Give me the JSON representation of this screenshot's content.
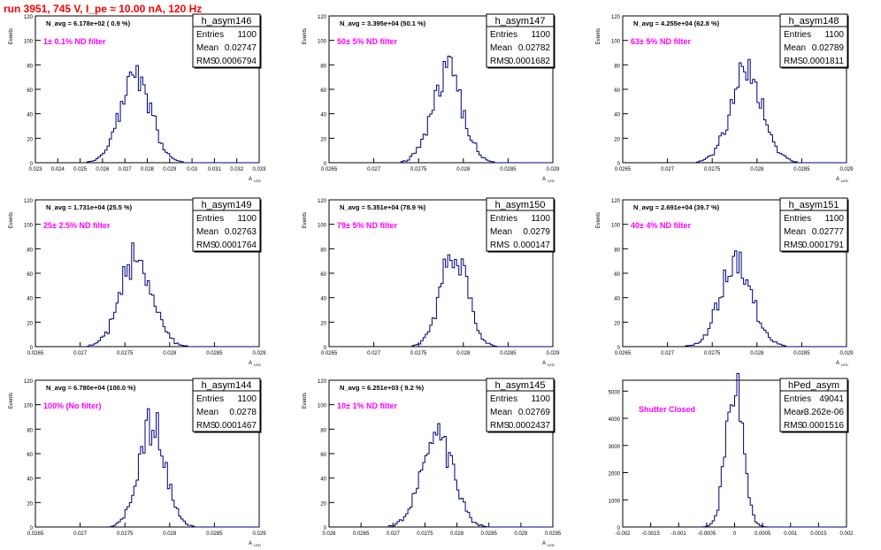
{
  "run_title": "run 3951,   745 V, I_pe ≈ 10.00 nA, 120 Hz",
  "colors": {
    "title": "#ff0000",
    "annotation": "#ff00ff",
    "histogram": "#000080",
    "axis": "#000000"
  },
  "chart_data": [
    {
      "type": "histogram",
      "name": "h_asym146",
      "navg": "N_avg = 6.178e+02 ( 0.9 %)",
      "filter": "1± 0.1% ND filter",
      "stats": {
        "entries": "1100",
        "mean": "0.02747",
        "rms": "0.0006794"
      },
      "xlabel": "A",
      "xlabel_sub": "LED",
      "ylabel": "Events",
      "xlim": [
        0.023,
        0.033
      ],
      "ylim": [
        0,
        120
      ],
      "xticks": [
        0.023,
        0.024,
        0.025,
        0.026,
        0.027,
        0.028,
        0.029,
        0.03,
        0.031,
        0.032,
        0.033
      ],
      "xtick_labels": [
        "0.023",
        "0.024",
        "0.025",
        "0.026",
        "0.027",
        "0.028",
        "0.029",
        "0.03",
        "0.031",
        "0.032",
        "0.033"
      ],
      "yticks": [
        0,
        20,
        40,
        60,
        80,
        100,
        120
      ],
      "ytick_labels": [
        "0",
        "20",
        "40",
        "60",
        "80",
        "100",
        "120"
      ],
      "hist": {
        "mean": 0.02747,
        "rms": 0.0006794,
        "peak": 72,
        "bin_width": 0.0001,
        "seed": 146
      }
    },
    {
      "type": "histogram",
      "name": "h_asym147",
      "navg": "N_avg = 3.395e+04 (50.1 %)",
      "filter": "50± 5% ND filter",
      "stats": {
        "entries": "1100",
        "mean": "0.02782",
        "rms": "0.0001682"
      },
      "xlabel": "A",
      "xlabel_sub": "LED",
      "ylabel": "Events",
      "xlim": [
        0.0265,
        0.029
      ],
      "ylim": [
        0,
        120
      ],
      "xticks": [
        0.0265,
        0.027,
        0.0275,
        0.028,
        0.0285,
        0.029
      ],
      "xtick_labels": [
        "0.0265",
        "0.027",
        "0.0275",
        "0.028",
        "0.0285",
        "0.029"
      ],
      "yticks": [
        0,
        20,
        40,
        60,
        80,
        100,
        120
      ],
      "ytick_labels": [
        "0",
        "20",
        "40",
        "60",
        "80",
        "100",
        "120"
      ],
      "hist": {
        "mean": 0.02782,
        "rms": 0.0001682,
        "peak": 73,
        "bin_width": 2.5e-05,
        "seed": 147
      }
    },
    {
      "type": "histogram",
      "name": "h_asym148",
      "navg": "N_avg = 4.255e+04 (62.8 %)",
      "filter": "63± 5% ND filter",
      "stats": {
        "entries": "1100",
        "mean": "0.02789",
        "rms": "0.0001811"
      },
      "xlabel": "A",
      "xlabel_sub": "LED",
      "ylabel": "Events",
      "xlim": [
        0.0265,
        0.029
      ],
      "ylim": [
        0,
        120
      ],
      "xticks": [
        0.0265,
        0.027,
        0.0275,
        0.028,
        0.0285,
        0.029
      ],
      "xtick_labels": [
        "0.0265",
        "0.027",
        "0.0275",
        "0.028",
        "0.0285",
        "0.029"
      ],
      "yticks": [
        0,
        20,
        40,
        60,
        80,
        100,
        120
      ],
      "ytick_labels": [
        "0",
        "20",
        "40",
        "60",
        "80",
        "100",
        "120"
      ],
      "hist": {
        "mean": 0.02789,
        "rms": 0.0001811,
        "peak": 73,
        "bin_width": 2.5e-05,
        "seed": 148
      }
    },
    {
      "type": "histogram",
      "name": "h_asym149",
      "navg": "N_avg = 1.731e+04 (25.5 %)",
      "filter": "25± 2.5% ND filter",
      "stats": {
        "entries": "1100",
        "mean": "0.02763",
        "rms": "0.0001764"
      },
      "xlabel": "A",
      "xlabel_sub": "LED",
      "ylabel": "Events",
      "xlim": [
        0.0265,
        0.029
      ],
      "ylim": [
        0,
        120
      ],
      "xticks": [
        0.0265,
        0.027,
        0.0275,
        0.028,
        0.0285,
        0.029
      ],
      "xtick_labels": [
        "0.0265",
        "0.027",
        "0.0275",
        "0.028",
        "0.0285",
        "0.029"
      ],
      "yticks": [
        0,
        20,
        40,
        60,
        80,
        100,
        120
      ],
      "ytick_labels": [
        "0",
        "20",
        "40",
        "60",
        "80",
        "100",
        "120"
      ],
      "hist": {
        "mean": 0.02763,
        "rms": 0.0001764,
        "peak": 74,
        "bin_width": 2.5e-05,
        "seed": 149
      }
    },
    {
      "type": "histogram",
      "name": "h_asym150",
      "navg": "N_avg = 5.351e+04 (78.9 %)",
      "filter": "79± 5% ND filter",
      "stats": {
        "entries": "1100",
        "mean": "0.0279",
        "rms": "0.000147"
      },
      "xlabel": "A",
      "xlabel_sub": "LED",
      "ylabel": "Events",
      "xlim": [
        0.0265,
        0.029
      ],
      "ylim": [
        0,
        120
      ],
      "xticks": [
        0.0265,
        0.027,
        0.0275,
        0.028,
        0.0285,
        0.029
      ],
      "xtick_labels": [
        "0.0265",
        "0.027",
        "0.0275",
        "0.028",
        "0.0285",
        "0.029"
      ],
      "yticks": [
        0,
        20,
        40,
        60,
        80,
        100,
        120
      ],
      "ytick_labels": [
        "0",
        "20",
        "40",
        "60",
        "80",
        "100",
        "120"
      ],
      "hist": {
        "mean": 0.0279,
        "rms": 0.000147,
        "peak": 82,
        "bin_width": 2.5e-05,
        "seed": 150
      }
    },
    {
      "type": "histogram",
      "name": "h_asym151",
      "navg": "N_avg = 2.691e+04 (39.7 %)",
      "filter": "40± 4% ND filter",
      "stats": {
        "entries": "1100",
        "mean": "0.02777",
        "rms": "0.0001791"
      },
      "xlabel": "A",
      "xlabel_sub": "LED",
      "ylabel": "Events",
      "xlim": [
        0.0265,
        0.029
      ],
      "ylim": [
        0,
        120
      ],
      "xticks": [
        0.0265,
        0.027,
        0.0275,
        0.028,
        0.0285,
        0.029
      ],
      "xtick_labels": [
        "0.0265",
        "0.027",
        "0.0275",
        "0.028",
        "0.0285",
        "0.029"
      ],
      "yticks": [
        0,
        20,
        40,
        60,
        80,
        100,
        120
      ],
      "ytick_labels": [
        "0",
        "20",
        "40",
        "60",
        "80",
        "100",
        "120"
      ],
      "hist": {
        "mean": 0.02777,
        "rms": 0.0001791,
        "peak": 68,
        "bin_width": 2.5e-05,
        "seed": 151
      }
    },
    {
      "type": "histogram",
      "name": "h_asym144",
      "navg": "N_avg = 6.780e+04 (100.0 %)",
      "filter": "100% (No filter)",
      "stats": {
        "entries": "1100",
        "mean": "0.0278",
        "rms": "0.0001467"
      },
      "xlabel": "A",
      "xlabel_sub": "LED",
      "ylabel": "Events",
      "xlim": [
        0.0265,
        0.029
      ],
      "ylim": [
        0,
        120
      ],
      "xticks": [
        0.0265,
        0.027,
        0.0275,
        0.028,
        0.0285,
        0.029
      ],
      "xtick_labels": [
        "0.0265",
        "0.027",
        "0.0275",
        "0.028",
        "0.0285",
        "0.029"
      ],
      "yticks": [
        0,
        20,
        40,
        60,
        80,
        100,
        120
      ],
      "ytick_labels": [
        "0",
        "20",
        "40",
        "60",
        "80",
        "100",
        "120"
      ],
      "hist": {
        "mean": 0.0278,
        "rms": 0.0001467,
        "peak": 84,
        "bin_width": 2.5e-05,
        "seed": 144
      }
    },
    {
      "type": "histogram",
      "name": "h_asym145",
      "navg": "N_avg = 6.251e+03 ( 9.2 %)",
      "filter": "10± 1% ND filter",
      "stats": {
        "entries": "1100",
        "mean": "0.02769",
        "rms": "0.0002437"
      },
      "xlabel": "A",
      "xlabel_sub": "LED",
      "ylabel": "Events",
      "xlim": [
        0.026,
        0.0295
      ],
      "ylim": [
        0,
        120
      ],
      "xticks": [
        0.026,
        0.0265,
        0.027,
        0.0275,
        0.028,
        0.0285,
        0.029,
        0.0295
      ],
      "xtick_labels": [
        "0.026",
        "0.0265",
        "0.027",
        "0.0275",
        "0.028",
        "0.0285",
        "0.029",
        "0.0295"
      ],
      "yticks": [
        0,
        20,
        40,
        60,
        80,
        100,
        120
      ],
      "ytick_labels": [
        "0",
        "20",
        "40",
        "60",
        "80",
        "100",
        "120"
      ],
      "hist": {
        "mean": 0.02769,
        "rms": 0.0002437,
        "peak": 75,
        "bin_width": 3.33e-05,
        "seed": 145
      }
    },
    {
      "type": "histogram",
      "name": "hPed_asym",
      "navg": "",
      "filter": "Shutter Closed",
      "stats": {
        "entries": "49041",
        "mean": "-3.262e-06",
        "rms": "0.0001516"
      },
      "xlabel": "",
      "xlabel_sub": "",
      "ylabel": "",
      "xlim": [
        -0.002,
        0.002
      ],
      "ylim": [
        0,
        5400
      ],
      "xticks": [
        -0.002,
        -0.0015,
        -0.001,
        -0.0005,
        0,
        0.0005,
        0.001,
        0.0015,
        0.002
      ],
      "xtick_labels": [
        "-0.002",
        "-0.0015",
        "-0.001",
        "-0.0005",
        "0",
        "0.0005",
        "0.001",
        "0.0015",
        "0.002"
      ],
      "yticks": [
        0,
        1000,
        2000,
        3000,
        4000,
        5000
      ],
      "ytick_labels": [
        "0",
        "1000",
        "2000",
        "3000",
        "4000",
        "5000"
      ],
      "hist": {
        "mean": -3.262e-06,
        "rms": 0.0001516,
        "peak": 5200,
        "bin_width": 4e-05,
        "seed": 1
      }
    }
  ]
}
